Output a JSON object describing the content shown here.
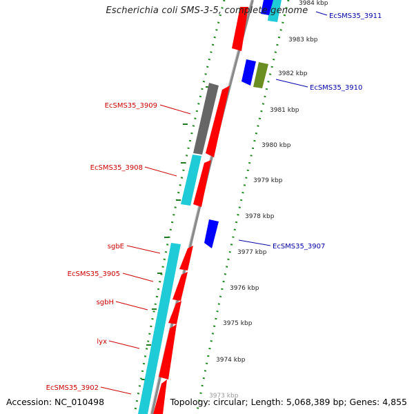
{
  "title": "Escherichia coli SMS-3-5, complete genome",
  "footer": {
    "accession": "Accession: NC_010498",
    "topology": "Topology: circular; Length: 5,068,389 bp; Genes: 4,855"
  },
  "colors": {
    "forward_cds": "#ff0000",
    "reverse_cds": "#0000ff",
    "rna": "#6b8e23",
    "cyan_feature": "#1ecbd6",
    "gray_feature": "#666666",
    "tick_outer": "#1f8a1f",
    "tick_inner": "#1f8a1f",
    "backbone": "#8a8a8a",
    "label_red": "#cc0000",
    "label_blue": "#0000aa"
  },
  "tick_labels": [
    {
      "kbp": 3984,
      "label": "3984 kbp"
    },
    {
      "kbp": 3983,
      "label": "3983 kbp"
    },
    {
      "kbp": 3982,
      "label": "3982 kbp"
    },
    {
      "kbp": 3981,
      "label": "3981 kbp"
    },
    {
      "kbp": 3980,
      "label": "3980 kbp"
    },
    {
      "kbp": 3979,
      "label": "3979 kbp"
    },
    {
      "kbp": 3978,
      "label": "3978 kbp"
    },
    {
      "kbp": 3977,
      "label": "3977 kbp"
    },
    {
      "kbp": 3976,
      "label": "3976 kbp"
    },
    {
      "kbp": 3975,
      "label": "3975 kbp"
    },
    {
      "kbp": 3974,
      "label": "3974 kbp"
    },
    {
      "kbp": 3973,
      "label": "3973 kbp"
    }
  ],
  "feature_labels_left": [
    {
      "name": "EcSMS35_3909"
    },
    {
      "name": "EcSMS35_3908"
    },
    {
      "name": "sgbE"
    },
    {
      "name": "EcSMS35_3905"
    },
    {
      "name": "sgbH"
    },
    {
      "name": "lyx"
    },
    {
      "name": "EcSMS35_3902"
    }
  ],
  "feature_labels_right": [
    {
      "name": "EcSMS35_3911"
    },
    {
      "name": "EcSMS35_3910"
    },
    {
      "name": "EcSMS35_3907"
    }
  ]
}
